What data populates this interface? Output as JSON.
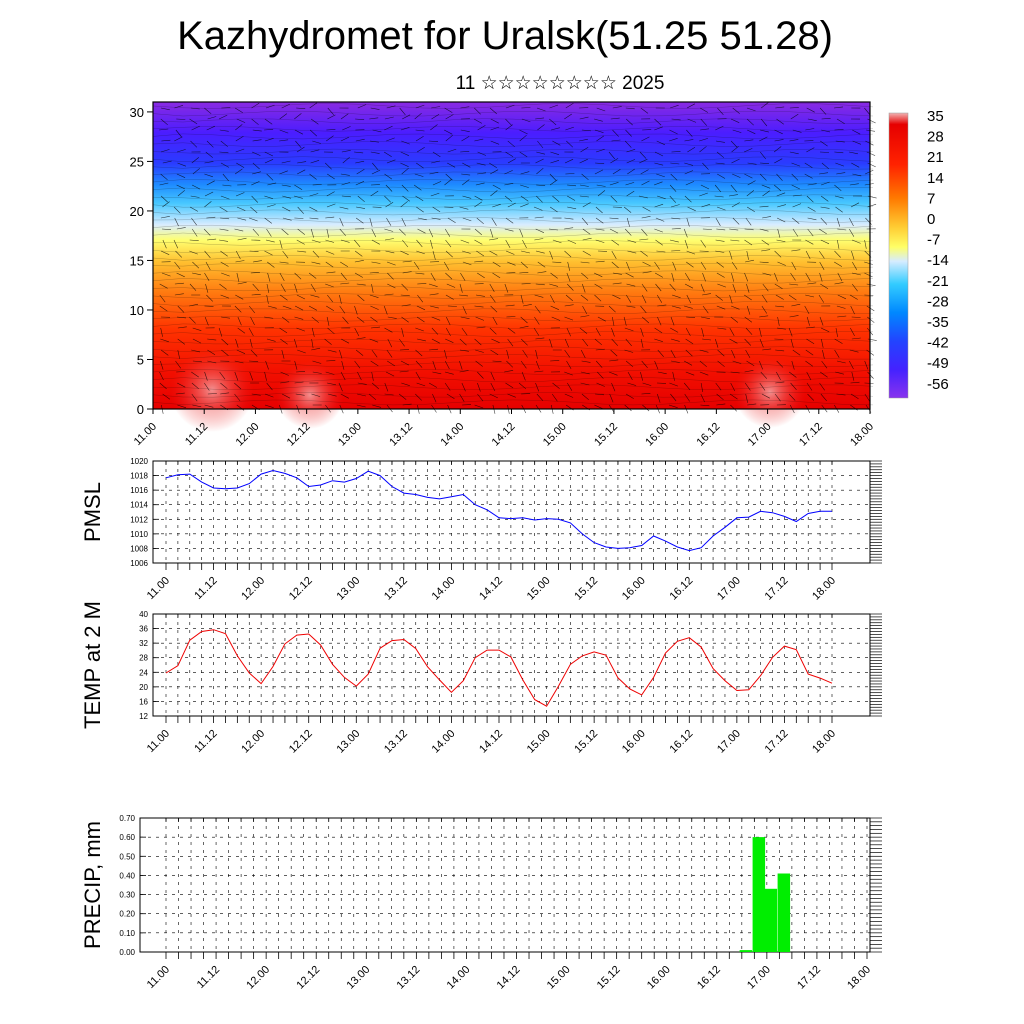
{
  "title": "Kazhydromet for Uralsk(51.25 51.28)",
  "subtitle": "11 ☆☆☆☆☆☆☆☆ 2025",
  "time_labels": [
    "11.00",
    "11.12",
    "12.00",
    "12.12",
    "13.00",
    "13.12",
    "14.00",
    "14.12",
    "15.00",
    "15.12",
    "16.00",
    "16.12",
    "17.00",
    "17.12",
    "18.00"
  ],
  "chart_data": [
    {
      "type": "heatmap",
      "name": "cross-section",
      "y_ticks": [
        0,
        5,
        10,
        15,
        20,
        25,
        30
      ],
      "ylim": [
        0,
        31
      ],
      "colorbar_labels": [
        "35",
        "28",
        "21",
        "14",
        "7",
        "0",
        "-7",
        "-14",
        "-21",
        "-28",
        "-35",
        "-42",
        "-49",
        "-56"
      ],
      "colorbar_colors": [
        "#f2b3b3",
        "#e60000",
        "#ff3300",
        "#ff7a00",
        "#ffcc33",
        "#ffff66",
        "#c8e6ff",
        "#33ccff",
        "#0099ff",
        "#2255ff",
        "#3322ff",
        "#6622ff",
        "#8833ee"
      ]
    },
    {
      "type": "line",
      "ylabel": "PMSL",
      "ylim": [
        1006,
        1020
      ],
      "y_ticks": [
        "1006",
        "1008",
        "1010",
        "1012",
        "1014",
        "1016",
        "1018",
        "1020"
      ],
      "color": "#0000ff",
      "values": [
        1017.7,
        1018.1,
        1018.2,
        1017.1,
        1016.3,
        1016.2,
        1016.3,
        1016.9,
        1018.2,
        1018.7,
        1018.3,
        1017.7,
        1016.5,
        1016.7,
        1017.3,
        1017.1,
        1017.6,
        1018.6,
        1018.0,
        1016.5,
        1015.6,
        1015.4,
        1015.0,
        1014.8,
        1015.1,
        1015.4,
        1014.0,
        1013.3,
        1012.2,
        1012.1,
        1012.2,
        1011.9,
        1012.1,
        1012.0,
        1011.5,
        1010.0,
        1008.8,
        1008.2,
        1008.0,
        1008.1,
        1008.4,
        1009.7,
        1009.0,
        1008.2,
        1007.7,
        1008.1,
        1009.7,
        1010.9,
        1012.2,
        1012.3,
        1013.1,
        1012.9,
        1012.4,
        1011.7,
        1012.8,
        1013.1,
        1013.1
      ]
    },
    {
      "type": "line",
      "ylabel": "TEMP at 2 M",
      "ylim": [
        12,
        40
      ],
      "y_ticks": [
        "12",
        "16",
        "20",
        "24",
        "28",
        "32",
        "36",
        "40"
      ],
      "color": "#ee0000",
      "values": [
        23.8,
        25.8,
        32.8,
        35.2,
        35.7,
        34.6,
        28.5,
        23.8,
        20.9,
        25.6,
        31.8,
        34.2,
        34.5,
        31.5,
        26.2,
        22.6,
        20.2,
        23.5,
        30.6,
        32.7,
        33.0,
        30.5,
        25.5,
        21.9,
        18.5,
        21.7,
        28.0,
        30.1,
        30.1,
        28.2,
        21.9,
        16.5,
        14.7,
        20.2,
        26.2,
        28.5,
        29.6,
        28.7,
        22.5,
        19.4,
        17.8,
        22.6,
        29.3,
        32.5,
        33.5,
        30.9,
        25.0,
        21.7,
        19.0,
        19.2,
        23.1,
        28.1,
        31.2,
        30.2,
        23.5,
        22.4,
        21.0
      ]
    },
    {
      "type": "bar",
      "ylabel": "PRECIP, mm",
      "ylim": [
        0,
        0.7
      ],
      "y_ticks": [
        "0.00",
        "0.10",
        "0.20",
        "0.30",
        "0.40",
        "0.50",
        "0.60",
        "0.70"
      ],
      "color": "#00ee00",
      "bars": [
        {
          "time": 16.79,
          "value": 0.01
        },
        {
          "time": 16.92,
          "value": 0.6
        },
        {
          "time": 17.04,
          "value": 0.33
        },
        {
          "time": 17.17,
          "value": 0.41
        }
      ]
    }
  ]
}
